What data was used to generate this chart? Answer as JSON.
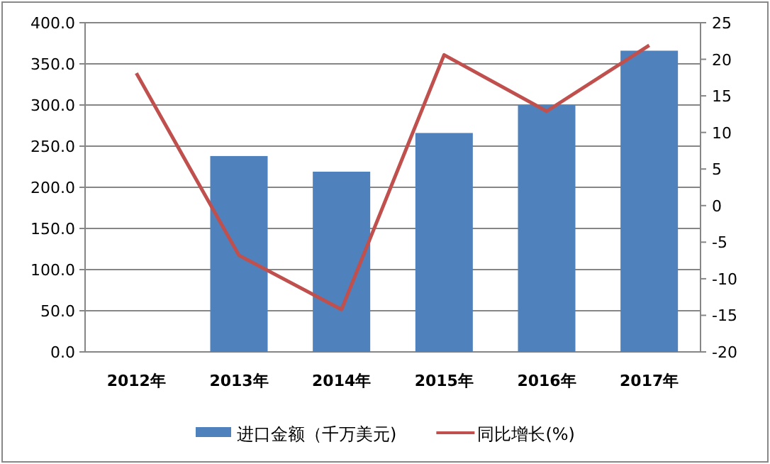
{
  "chart_data": {
    "type": "bar",
    "categories": [
      "2012年",
      "2013年",
      "2014年",
      "2015年",
      "2016年",
      "2017年"
    ],
    "series": [
      {
        "name": "进口金额（千万美元)",
        "color": "#4f81bd",
        "values": [
          null,
          238,
          219,
          266,
          300,
          366
        ]
      },
      {
        "name": "同比增长(%)",
        "type": "line",
        "axis": "y2",
        "color": "#c0504d",
        "values": [
          18.1,
          -6.8,
          -14.2,
          20.6,
          12.9,
          21.9
        ]
      }
    ],
    "ylim": [
      0,
      400
    ],
    "yticks": [
      {
        "value": 0,
        "label": "0.0"
      },
      {
        "value": 50,
        "label": "50.0"
      },
      {
        "value": 100,
        "label": "100.0"
      },
      {
        "value": 150,
        "label": "150.0"
      },
      {
        "value": 200,
        "label": "200.0"
      },
      {
        "value": 250,
        "label": "250.0"
      },
      {
        "value": 300,
        "label": "300.0"
      },
      {
        "value": 350,
        "label": "350.0"
      },
      {
        "value": 400,
        "label": "400.0"
      }
    ],
    "y2lim": [
      -20,
      25
    ],
    "y2ticks": [
      -20,
      -15,
      -10,
      -5,
      0,
      5,
      10,
      15,
      20,
      25
    ],
    "grid": "y",
    "legend": "bottom",
    "marker": "none"
  }
}
